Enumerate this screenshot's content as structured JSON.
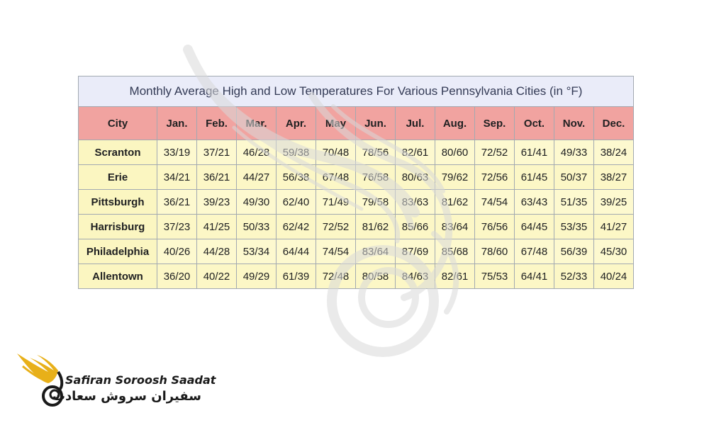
{
  "table": {
    "caption": "Monthly Average High and Low Temperatures For Various Pennsylvania Cities (in °F)",
    "header_city": "City",
    "months": [
      "Jan.",
      "Feb.",
      "Mar.",
      "Apr.",
      "May",
      "Jun.",
      "Jul.",
      "Aug.",
      "Sep.",
      "Oct.",
      "Nov.",
      "Dec."
    ],
    "rows": [
      {
        "city": "Scranton",
        "values": [
          "33/19",
          "37/21",
          "46/28",
          "59/38",
          "70/48",
          "78/56",
          "82/61",
          "80/60",
          "72/52",
          "61/41",
          "49/33",
          "38/24"
        ]
      },
      {
        "city": "Erie",
        "values": [
          "34/21",
          "36/21",
          "44/27",
          "56/38",
          "67/48",
          "76/58",
          "80/63",
          "79/62",
          "72/56",
          "61/45",
          "50/37",
          "38/27"
        ]
      },
      {
        "city": "Pittsburgh",
        "values": [
          "36/21",
          "39/23",
          "49/30",
          "62/40",
          "71/49",
          "79/58",
          "83/63",
          "81/62",
          "74/54",
          "63/43",
          "51/35",
          "39/25"
        ]
      },
      {
        "city": "Harrisburg",
        "values": [
          "37/23",
          "41/25",
          "50/33",
          "62/42",
          "72/52",
          "81/62",
          "85/66",
          "83/64",
          "76/56",
          "64/45",
          "53/35",
          "41/27"
        ]
      },
      {
        "city": "Philadelphia",
        "values": [
          "40/26",
          "44/28",
          "53/34",
          "64/44",
          "74/54",
          "83/64",
          "87/69",
          "85/68",
          "78/60",
          "67/48",
          "56/39",
          "45/30"
        ]
      },
      {
        "city": "Allentown",
        "values": [
          "36/20",
          "40/22",
          "49/29",
          "61/39",
          "72/48",
          "80/58",
          "84/63",
          "82/61",
          "75/53",
          "64/41",
          "52/33",
          "40/24"
        ]
      }
    ]
  },
  "logo": {
    "name_en": "Safiran Soroosh Saadat",
    "name_fa": "سفیران سروش سعادت",
    "colors": {
      "gold": "#e8b019",
      "dark": "#1a1a1a"
    }
  },
  "watermark": {
    "color": "#d8d8d8",
    "icon": "swan-logo-watermark"
  }
}
